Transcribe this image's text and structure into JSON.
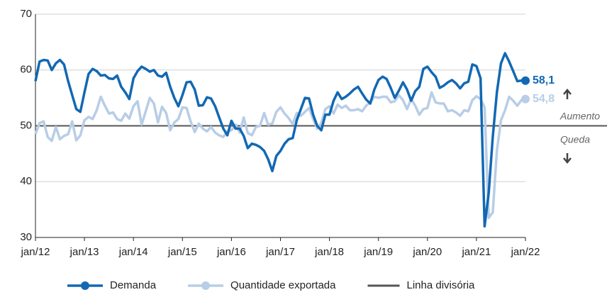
{
  "chart_data": {
    "type": "line",
    "categories": [
      "jan/12",
      null,
      null,
      null,
      null,
      null,
      null,
      null,
      null,
      null,
      null,
      null,
      "jan/13",
      null,
      null,
      null,
      null,
      null,
      null,
      null,
      null,
      null,
      null,
      null,
      "jan/14",
      null,
      null,
      null,
      null,
      null,
      null,
      null,
      null,
      null,
      null,
      null,
      "jan/15",
      null,
      null,
      null,
      null,
      null,
      null,
      null,
      null,
      null,
      null,
      null,
      "jan/16",
      null,
      null,
      null,
      null,
      null,
      null,
      null,
      null,
      null,
      null,
      null,
      "jan/17",
      null,
      null,
      null,
      null,
      null,
      null,
      null,
      null,
      null,
      null,
      null,
      "jan/18",
      null,
      null,
      null,
      null,
      null,
      null,
      null,
      null,
      null,
      null,
      null,
      "jan/19",
      null,
      null,
      null,
      null,
      null,
      null,
      null,
      null,
      null,
      null,
      null,
      "jan/20",
      null,
      null,
      null,
      null,
      null,
      null,
      null,
      null,
      null,
      null,
      null,
      "jan/21",
      null,
      null,
      null,
      null,
      null,
      null,
      null,
      null,
      null,
      null,
      null,
      "jan/22"
    ],
    "series": [
      {
        "name": "Demanda",
        "color": "#1268b3",
        "values": [
          58,
          61.5,
          61.8,
          61.7,
          60,
          61.2,
          61.8,
          61,
          58,
          55.5,
          53,
          52.5,
          56,
          59.3,
          60.2,
          59.8,
          59,
          59.1,
          58.5,
          58.4,
          59,
          57,
          56,
          54.8,
          58.5,
          59.8,
          60.6,
          60.2,
          59.7,
          60,
          59,
          58.8,
          59.5,
          57,
          55,
          53.5,
          55.5,
          57.8,
          57.9,
          56.5,
          53.6,
          53.7,
          55.1,
          54.9,
          53.5,
          51.5,
          49.5,
          48.3,
          50.9,
          49.5,
          49.5,
          48.2,
          46,
          46.8,
          46.6,
          46.2,
          45.5,
          44,
          41.9,
          44.6,
          45.5,
          46.8,
          47.6,
          47.8,
          51,
          53,
          55,
          54.9,
          52,
          50,
          49.2,
          52,
          52,
          54.5,
          56,
          54.8,
          55.2,
          55.8,
          56.5,
          57,
          55.8,
          54.7,
          54,
          56.5,
          58.2,
          58.8,
          58.4,
          56.8,
          55,
          56.3,
          57.8,
          56.5,
          54.5,
          56.2,
          57,
          60.2,
          60.6,
          59.6,
          58.8,
          56.8,
          57.2,
          57.8,
          58.2,
          57.6,
          56.7,
          57.6,
          57.9,
          61,
          60.7,
          58.5,
          32,
          38,
          48,
          56,
          61.2,
          63,
          61.5,
          59.8,
          58,
          58.1,
          58.1
        ],
        "value_labels": [
          null,
          null,
          null,
          null,
          null,
          null,
          null,
          null,
          null,
          null,
          null,
          null,
          null,
          null,
          null,
          null,
          null,
          null,
          null,
          null,
          null,
          null,
          null,
          null,
          null,
          null,
          null,
          null,
          null,
          null,
          null,
          null,
          null,
          null,
          null,
          null,
          null,
          null,
          null,
          null,
          null,
          null,
          null,
          null,
          null,
          null,
          null,
          null,
          null,
          null,
          null,
          null,
          null,
          null,
          null,
          null,
          null,
          null,
          null,
          null,
          null,
          null,
          null,
          null,
          null,
          null,
          null,
          null,
          null,
          null,
          null,
          null,
          null,
          null,
          null,
          null,
          null,
          null,
          null,
          null,
          null,
          null,
          null,
          null,
          null,
          null,
          null,
          null,
          null,
          null,
          null,
          null,
          null,
          null,
          null,
          null,
          null,
          null,
          null,
          null,
          null,
          null,
          null,
          null,
          null,
          null,
          null,
          null,
          null,
          null,
          null,
          null,
          null,
          null,
          null,
          null,
          null,
          null,
          null,
          null,
          "58,1"
        ]
      },
      {
        "name": "Quantidade exportada",
        "color": "#b8cde6",
        "values": [
          48.5,
          50.5,
          50.8,
          48,
          47.3,
          49.8,
          47.6,
          48.2,
          48.5,
          50.8,
          47.4,
          48.3,
          51,
          51.6,
          51.2,
          52.8,
          55.2,
          53.6,
          52.2,
          52.4,
          51.2,
          50.9,
          52.2,
          51.3,
          53.5,
          54.4,
          50.2,
          52.6,
          55,
          54,
          50.6,
          53.4,
          52.3,
          49.2,
          50.6,
          51.2,
          53.3,
          53.2,
          50.8,
          48.9,
          50.4,
          49.5,
          49,
          49.8,
          48.8,
          48.3,
          48,
          49,
          49.2,
          50.2,
          48.8,
          51.5,
          48.7,
          48.3,
          49.8,
          50,
          52.3,
          50.2,
          50.4,
          52.5,
          53.3,
          52.2,
          51.4,
          50.3,
          52.3,
          51.8,
          52.5,
          53.2,
          51.2,
          49.5,
          50.5,
          53,
          53.5,
          52.2,
          53.8,
          53.2,
          53.6,
          52.8,
          52.8,
          53,
          52.6,
          53.6,
          54.2,
          55.2,
          55,
          55.2,
          55.2,
          54.2,
          54.4,
          55.5,
          54.6,
          53,
          54.8,
          53.6,
          52,
          53,
          53.2,
          56,
          54.2,
          54,
          54,
          52.6,
          52.8,
          52.4,
          51.8,
          52.8,
          52.6,
          54.6,
          55.3,
          54.8,
          53.3,
          33.5,
          34.5,
          45.5,
          51,
          52.8,
          55.2,
          54.5,
          53.6,
          54.6,
          54.8
        ],
        "value_labels": [
          null,
          null,
          null,
          null,
          null,
          null,
          null,
          null,
          null,
          null,
          null,
          null,
          null,
          null,
          null,
          null,
          null,
          null,
          null,
          null,
          null,
          null,
          null,
          null,
          null,
          null,
          null,
          null,
          null,
          null,
          null,
          null,
          null,
          null,
          null,
          null,
          null,
          null,
          null,
          null,
          null,
          null,
          null,
          null,
          null,
          null,
          null,
          null,
          null,
          null,
          null,
          null,
          null,
          null,
          null,
          null,
          null,
          null,
          null,
          null,
          null,
          null,
          null,
          null,
          null,
          null,
          null,
          null,
          null,
          null,
          null,
          null,
          null,
          null,
          null,
          null,
          null,
          null,
          null,
          null,
          null,
          null,
          null,
          null,
          null,
          null,
          null,
          null,
          null,
          null,
          null,
          null,
          null,
          null,
          null,
          null,
          null,
          null,
          null,
          null,
          null,
          null,
          null,
          null,
          null,
          null,
          null,
          null,
          null,
          null,
          null,
          null,
          null,
          null,
          null,
          null,
          null,
          null,
          null,
          null,
          "54,8"
        ]
      }
    ],
    "reference_line": {
      "name": "Linha divisória",
      "value": 50,
      "color": "#555555"
    },
    "annotations": [
      "Aumento",
      "Queda"
    ],
    "ylim": [
      30,
      70
    ],
    "yticks": [
      30,
      40,
      50,
      60,
      70
    ],
    "grid": true,
    "legend": "bottom"
  }
}
